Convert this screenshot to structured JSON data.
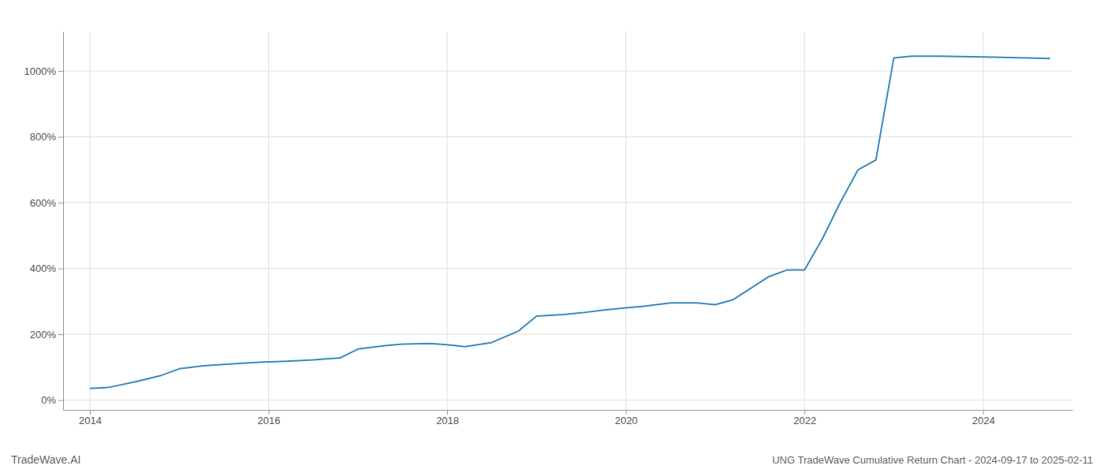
{
  "chart_data": {
    "type": "line",
    "title": "UNG TradeWave Cumulative Return Chart - 2024-09-17 to 2025-02-11",
    "annotations": [
      "TradeWave.AI"
    ],
    "color": "#3a8abf",
    "grid": true,
    "x": [
      2014.0,
      2014.2,
      2014.5,
      2014.8,
      2015.0,
      2015.3,
      2015.6,
      2015.9,
      2016.2,
      2016.5,
      2016.8,
      2017.0,
      2017.3,
      2017.5,
      2017.8,
      2018.0,
      2018.2,
      2018.5,
      2018.8,
      2019.0,
      2019.3,
      2019.5,
      2019.8,
      2020.0,
      2020.2,
      2020.5,
      2020.8,
      2021.0,
      2021.2,
      2021.4,
      2021.6,
      2021.8,
      2022.0,
      2022.2,
      2022.4,
      2022.6,
      2022.8,
      2023.0,
      2023.2,
      2023.5,
      2024.0,
      2024.5,
      2024.75
    ],
    "values": [
      35,
      38,
      55,
      75,
      95,
      105,
      110,
      115,
      118,
      122,
      128,
      155,
      165,
      170,
      172,
      168,
      162,
      175,
      210,
      255,
      260,
      265,
      275,
      280,
      285,
      295,
      295,
      290,
      305,
      340,
      375,
      395,
      395,
      490,
      600,
      700,
      730,
      1040,
      1045,
      1045,
      1043,
      1040,
      1038
    ],
    "xlim": [
      2013.7,
      2025.0
    ],
    "xticks": [
      2014,
      2016,
      2018,
      2020,
      2022,
      2024
    ],
    "ylim": [
      -30,
      1120
    ],
    "yticks": [
      {
        "value": 0,
        "label": "0%"
      },
      {
        "value": 200,
        "label": "200%"
      },
      {
        "value": 400,
        "label": "400%"
      },
      {
        "value": 600,
        "label": "600%"
      },
      {
        "value": 800,
        "label": "800%"
      },
      {
        "value": 1000,
        "label": "1000%"
      }
    ]
  }
}
